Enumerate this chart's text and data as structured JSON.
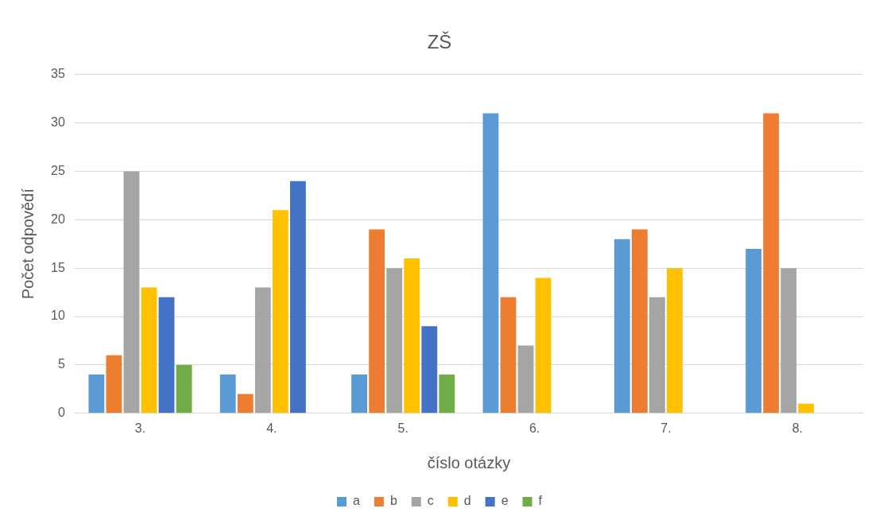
{
  "chart_data": {
    "type": "bar",
    "title": "ZŠ",
    "xlabel": "číslo otázky",
    "ylabel": "Počet odpovědí",
    "categories": [
      "3.",
      "4.",
      "5.",
      "6.",
      "7.",
      "8."
    ],
    "series": [
      {
        "name": "a",
        "color": "#5b9bd5",
        "values": [
          4,
          4,
          4,
          31,
          18,
          17
        ]
      },
      {
        "name": "b",
        "color": "#ed7d31",
        "values": [
          6,
          2,
          19,
          12,
          19,
          31
        ]
      },
      {
        "name": "c",
        "color": "#a5a5a5",
        "values": [
          25,
          13,
          15,
          7,
          12,
          15
        ]
      },
      {
        "name": "d",
        "color": "#ffc000",
        "values": [
          13,
          21,
          16,
          14,
          15,
          1
        ]
      },
      {
        "name": "e",
        "color": "#4472c4",
        "values": [
          12,
          24,
          9,
          0,
          0,
          0
        ]
      },
      {
        "name": "f",
        "color": "#70ad47",
        "values": [
          5,
          0,
          4,
          0,
          0,
          0
        ]
      }
    ],
    "ylim": [
      0,
      35
    ],
    "yticks": [
      0,
      5,
      10,
      15,
      20,
      25,
      30,
      35
    ],
    "grid": "y",
    "legend": "bottom"
  }
}
